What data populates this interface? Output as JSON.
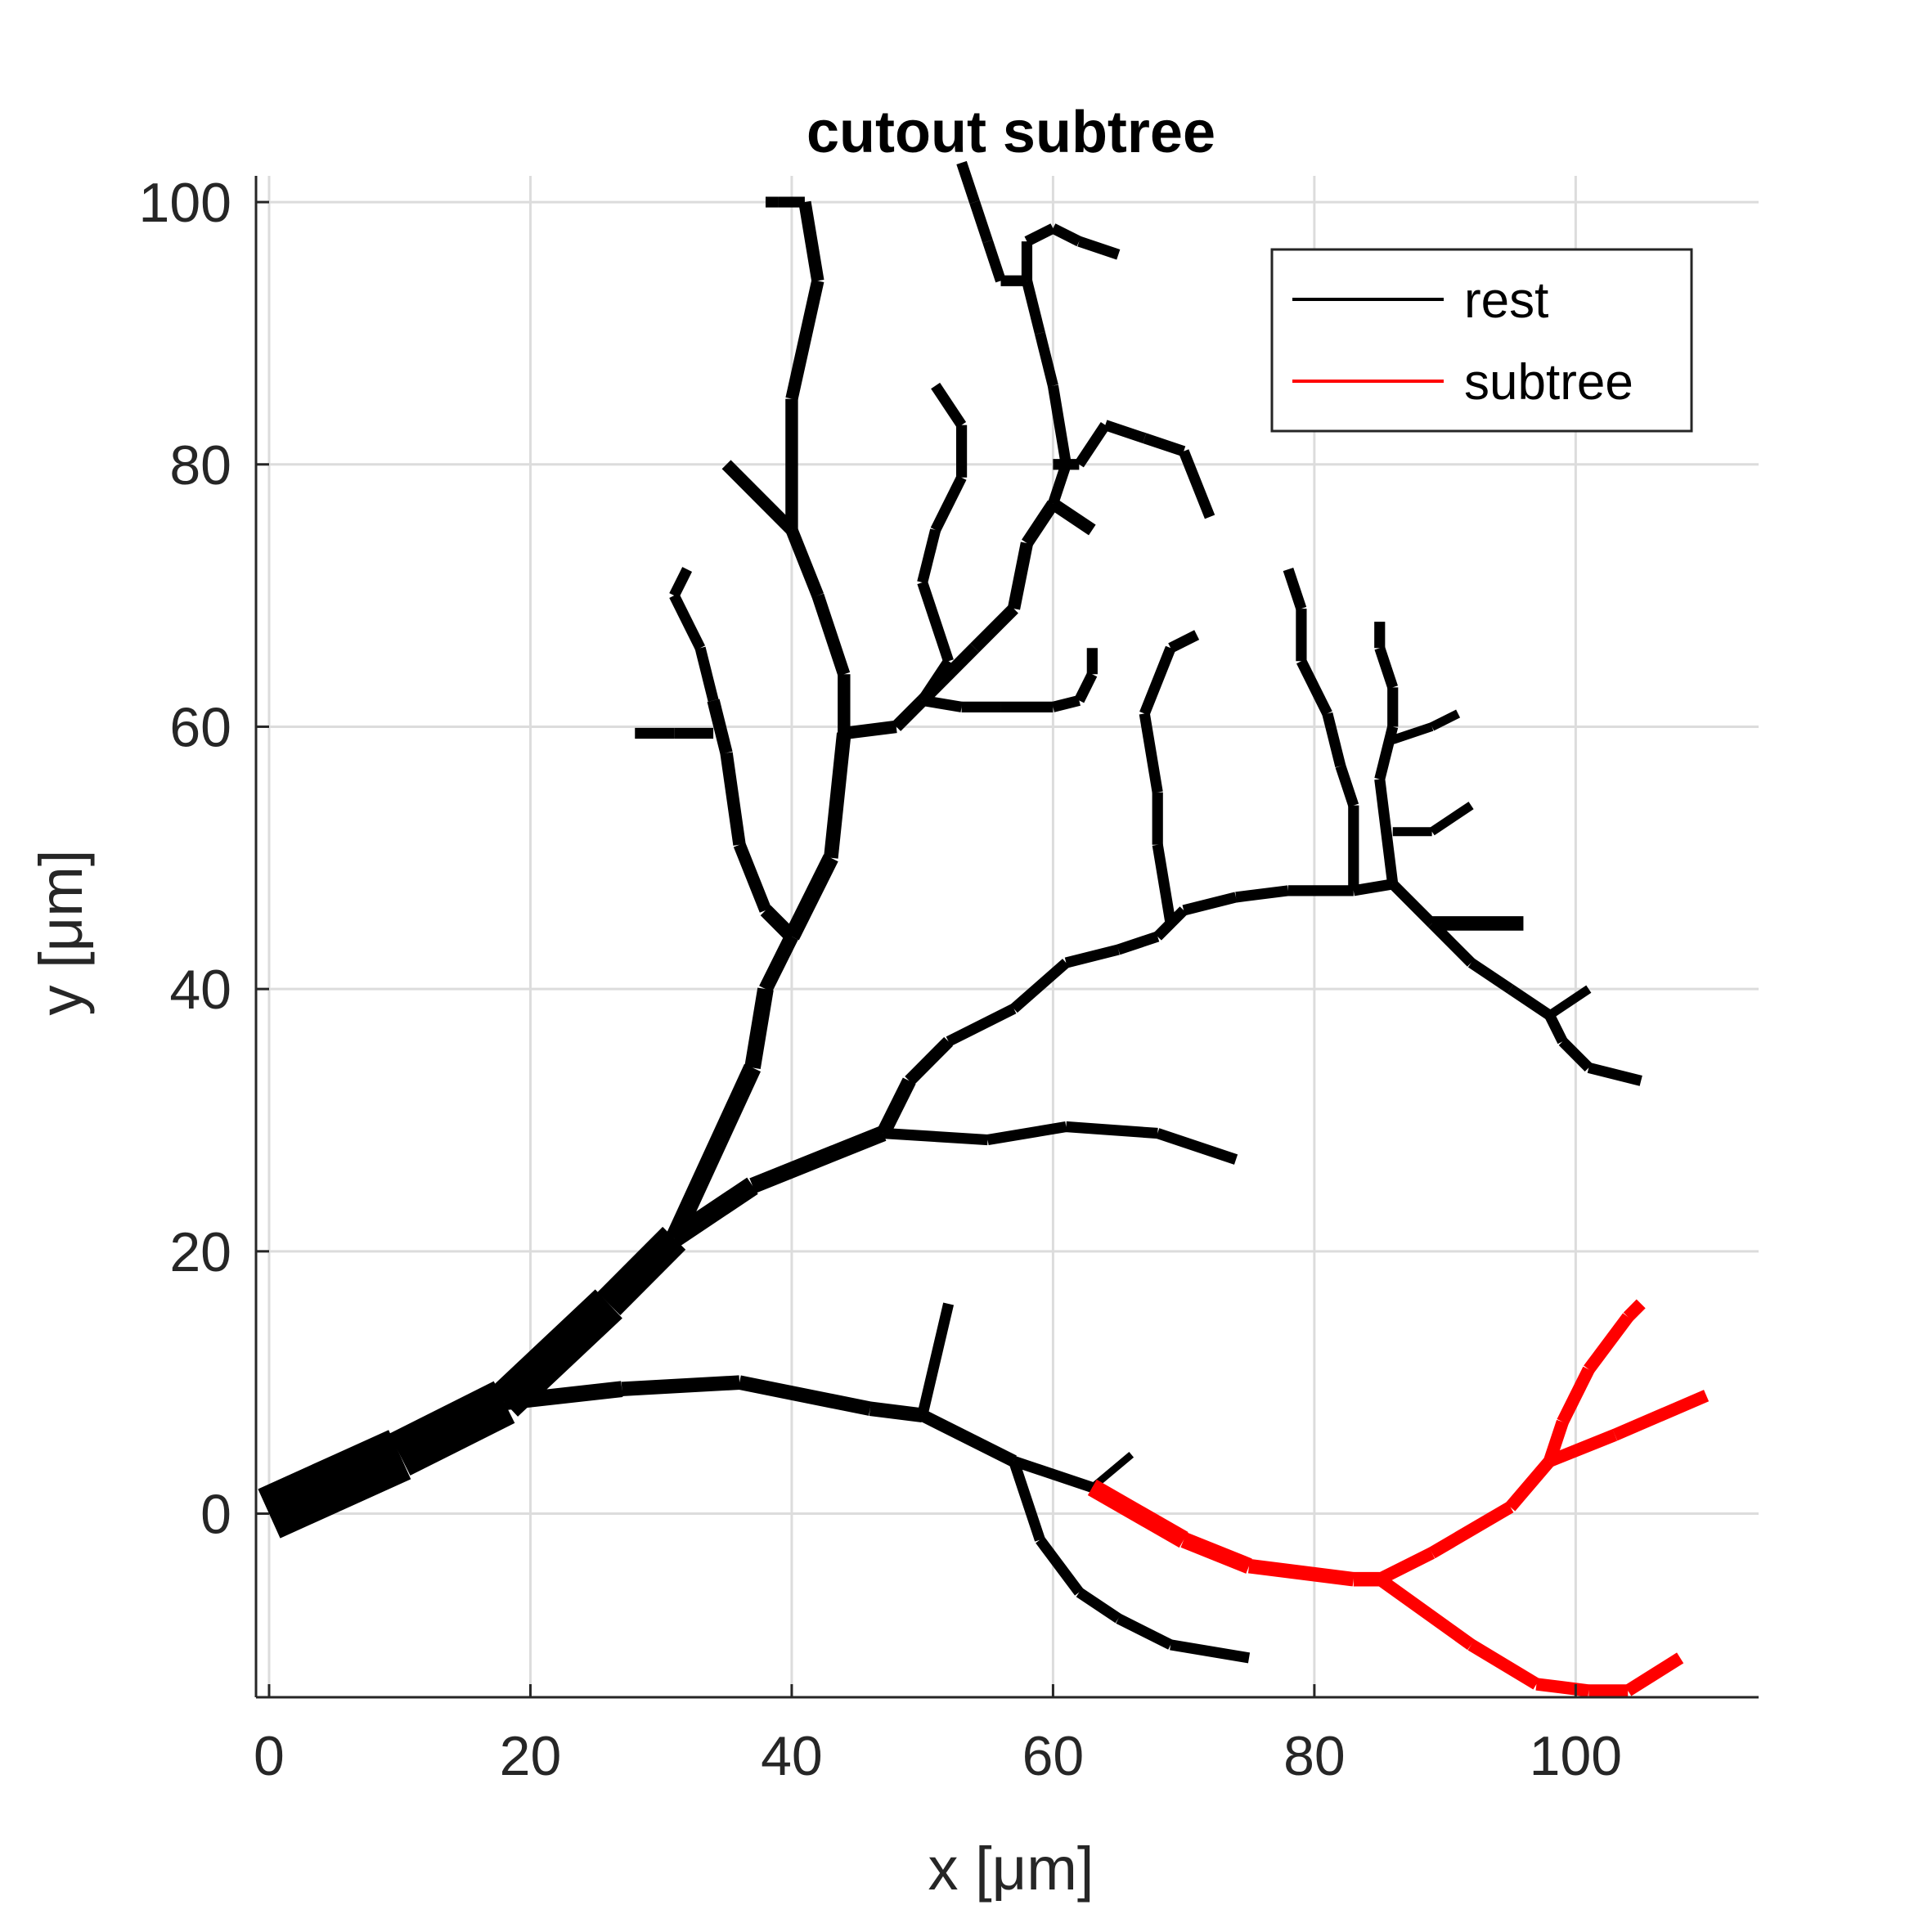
{
  "chart_data": {
    "type": "line",
    "title": "cutout subtree",
    "xlabel": "x [μm]",
    "ylabel": "y [μm]",
    "xlim": [
      -1,
      114
    ],
    "ylim": [
      -14,
      102
    ],
    "xticks": [
      0,
      20,
      40,
      60,
      80,
      100
    ],
    "yticks": [
      0,
      20,
      40,
      60,
      80,
      100
    ],
    "xtick_labels": [
      "0",
      "20",
      "40",
      "60",
      "80",
      "100"
    ],
    "ytick_labels": [
      "0",
      "20",
      "40",
      "60",
      "80",
      "100"
    ],
    "grid": true,
    "legend_position": "top-right",
    "legend": [
      {
        "label": "rest",
        "color": "#000000"
      },
      {
        "label": "subtree",
        "color": "#ff0000"
      }
    ],
    "series": [
      {
        "name": "rest",
        "color": "#000000",
        "branches": [
          {
            "w": [
              30,
              26,
              22,
              18,
              14
            ],
            "points": [
              [
                0,
                0
              ],
              [
                10,
                4.5
              ],
              [
                18,
                8.5
              ],
              [
                26,
                16
              ],
              [
                31,
                21
              ]
            ]
          },
          {
            "w": [
              10,
              9,
              8
            ],
            "points": [
              [
                31,
                21
              ],
              [
                37,
                34
              ],
              [
                38,
                40
              ],
              [
                40,
                44
              ]
            ]
          },
          {
            "w": [
              9,
              8,
              7,
              7
            ],
            "points": [
              [
                40,
                44
              ],
              [
                43,
                50
              ],
              [
                44,
                59.5
              ],
              [
                48,
                60
              ],
              [
                50,
                62
              ]
            ]
          },
          {
            "w": [
              8,
              7,
              7,
              7
            ],
            "points": [
              [
                40,
                44
              ],
              [
                38,
                46
              ],
              [
                36,
                51
              ],
              [
                35,
                58
              ],
              [
                34,
                62
              ]
            ]
          },
          {
            "w": [
              6,
              6
            ],
            "points": [
              [
                34,
                62
              ],
              [
                33,
                66
              ],
              [
                31,
                70
              ],
              [
                32,
                72
              ]
            ]
          },
          {
            "w": [
              6,
              6
            ],
            "points": [
              [
                34,
                59.5
              ],
              [
                31,
                59.5
              ],
              [
                28,
                59.5
              ]
            ]
          },
          {
            "w": [
              7,
              7,
              7,
              7,
              7
            ],
            "points": [
              [
                44,
                59.5
              ],
              [
                44,
                64
              ],
              [
                42,
                70
              ],
              [
                40,
                75
              ],
              [
                40,
                85
              ],
              [
                42,
                94
              ],
              [
                41,
                100
              ]
            ]
          },
          {
            "w": [
              7
            ],
            "points": [
              [
                40,
                75
              ],
              [
                35,
                80
              ]
            ]
          },
          {
            "w": [
              6,
              6
            ],
            "points": [
              [
                41,
                100
              ],
              [
                39,
                100
              ],
              [
                38,
                100
              ]
            ]
          },
          {
            "w": [
              7,
              7,
              7,
              7
            ],
            "points": [
              [
                50,
                62
              ],
              [
                54,
                66
              ],
              [
                57,
                69
              ],
              [
                58,
                74
              ],
              [
                60,
                77
              ],
              [
                63,
                75
              ]
            ]
          },
          {
            "w": [
              6,
              6,
              6,
              6
            ],
            "points": [
              [
                60,
                77
              ],
              [
                61,
                80
              ],
              [
                60,
                86
              ],
              [
                59,
                90
              ],
              [
                58,
                94
              ],
              [
                56,
                94
              ]
            ]
          },
          {
            "w": [
              6,
              6,
              6
            ],
            "points": [
              [
                56,
                94
              ],
              [
                55,
                97
              ],
              [
                54,
                100
              ],
              [
                53,
                103
              ]
            ]
          },
          {
            "w": [
              6,
              6,
              6
            ],
            "points": [
              [
                58,
                94
              ],
              [
                58,
                97
              ],
              [
                60,
                98
              ],
              [
                62,
                97
              ],
              [
                65,
                96
              ]
            ]
          },
          {
            "w": [
              6,
              6,
              6,
              6
            ],
            "points": [
              [
                60,
                80
              ],
              [
                62,
                80
              ],
              [
                64,
                83
              ],
              [
                67,
                82
              ],
              [
                70,
                81
              ],
              [
                72,
                76
              ]
            ]
          },
          {
            "w": [
              6,
              6,
              6
            ],
            "points": [
              [
                50,
                62
              ],
              [
                52,
                65
              ],
              [
                50,
                71
              ],
              [
                51,
                75
              ],
              [
                53,
                79
              ],
              [
                53,
                83
              ],
              [
                51,
                86
              ]
            ]
          },
          {
            "w": [
              6,
              6,
              6
            ],
            "points": [
              [
                50,
                62
              ],
              [
                53,
                61.5
              ],
              [
                56,
                61.5
              ],
              [
                60,
                61.5
              ],
              [
                62,
                62
              ],
              [
                63,
                64
              ],
              [
                63,
                66
              ]
            ]
          },
          {
            "w": [
              11,
              9
            ],
            "points": [
              [
                31,
                21
              ],
              [
                37,
                25
              ],
              [
                47,
                29
              ]
            ]
          },
          {
            "w": [
              6,
              6,
              6,
              6
            ],
            "points": [
              [
                47,
                29
              ],
              [
                55,
                28.5
              ],
              [
                61,
                29.5
              ],
              [
                68,
                29
              ],
              [
                74,
                27
              ]
            ]
          },
          {
            "w": [
              8,
              7,
              6,
              6,
              6
            ],
            "points": [
              [
                47,
                29
              ],
              [
                49,
                33
              ],
              [
                52,
                36
              ],
              [
                57,
                38.5
              ],
              [
                61,
                42
              ],
              [
                65,
                43
              ],
              [
                68,
                44
              ],
              [
                70,
                46
              ],
              [
                74,
                47
              ],
              [
                78,
                47.5
              ],
              [
                83,
                47.5
              ],
              [
                86,
                48
              ]
            ]
          },
          {
            "w": [
              6,
              6,
              6,
              6
            ],
            "points": [
              [
                69,
                45
              ],
              [
                68,
                51
              ],
              [
                68,
                55
              ],
              [
                67,
                61
              ],
              [
                69,
                66
              ],
              [
                71,
                67
              ]
            ]
          },
          {
            "w": [
              6,
              6,
              6
            ],
            "points": [
              [
                83,
                47.5
              ],
              [
                83,
                54
              ],
              [
                82,
                57
              ],
              [
                81,
                61
              ],
              [
                79,
                65
              ],
              [
                79,
                69
              ],
              [
                78,
                72
              ]
            ]
          },
          {
            "w": [
              6,
              6,
              6
            ],
            "points": [
              [
                86,
                48
              ],
              [
                85,
                56
              ],
              [
                86,
                60
              ],
              [
                86,
                63
              ],
              [
                85,
                66
              ],
              [
                85,
                68
              ]
            ]
          },
          {
            "w": [
              5,
              5
            ],
            "points": [
              [
                86,
                52
              ],
              [
                89,
                52
              ],
              [
                92,
                54
              ]
            ]
          },
          {
            "w": [
              5,
              5
            ],
            "points": [
              [
                86,
                59
              ],
              [
                89,
                60
              ],
              [
                91,
                61
              ]
            ]
          },
          {
            "w": [
              6,
              6,
              6,
              6
            ],
            "points": [
              [
                86,
                48
              ],
              [
                89,
                45
              ],
              [
                92,
                42
              ],
              [
                95,
                40
              ],
              [
                98,
                38
              ],
              [
                99,
                36
              ],
              [
                101,
                34
              ],
              [
                105,
                33
              ]
            ]
          },
          {
            "w": [
              8
            ],
            "points": [
              [
                89,
                45
              ],
              [
                96,
                45
              ]
            ]
          },
          {
            "w": [
              5
            ],
            "points": [
              [
                98,
                38
              ],
              [
                101,
                40
              ]
            ]
          },
          {
            "w": [
              9,
              8
            ],
            "points": [
              [
                18,
                8.5
              ],
              [
                27,
                9.5
              ],
              [
                36,
                10
              ],
              [
                46,
                8
              ],
              [
                50,
                7.5
              ]
            ]
          },
          {
            "w": [
              6
            ],
            "points": [
              [
                50,
                7.5
              ],
              [
                52,
                16
              ]
            ]
          },
          {
            "w": [
              7,
              6
            ],
            "points": [
              [
                50,
                7.5
              ],
              [
                57,
                4
              ],
              [
                63,
                2
              ]
            ]
          },
          {
            "w": [
              6,
              6,
              6
            ],
            "points": [
              [
                57,
                4
              ],
              [
                59,
                -2
              ],
              [
                62,
                -6
              ],
              [
                65,
                -8
              ],
              [
                69,
                -10
              ],
              [
                75,
                -11
              ]
            ]
          },
          {
            "w": [
              4
            ],
            "points": [
              [
                63,
                2
              ],
              [
                66,
                4.5
              ]
            ]
          }
        ]
      },
      {
        "name": "subtree",
        "color": "#ff0000",
        "branches": [
          {
            "w": [
              10,
              9,
              8
            ],
            "points": [
              [
                63,
                2
              ],
              [
                70,
                -2
              ],
              [
                75,
                -4
              ],
              [
                83,
                -5
              ],
              [
                85,
                -5
              ]
            ]
          },
          {
            "w": [
              7,
              7,
              7
            ],
            "points": [
              [
                85,
                -5
              ],
              [
                89,
                -3
              ],
              [
                95,
                0.5
              ],
              [
                98,
                4
              ],
              [
                103,
                6
              ],
              [
                110,
                9
              ]
            ]
          },
          {
            "w": [
              7,
              7
            ],
            "points": [
              [
                98,
                4
              ],
              [
                99,
                7
              ],
              [
                101,
                11
              ],
              [
                104,
                15
              ],
              [
                105,
                16
              ]
            ]
          },
          {
            "w": [
              7,
              7,
              7
            ],
            "points": [
              [
                85,
                -5
              ],
              [
                92,
                -10
              ],
              [
                97,
                -13
              ],
              [
                101,
                -13.5
              ],
              [
                104,
                -13.5
              ],
              [
                108,
                -11
              ]
            ]
          }
        ]
      }
    ]
  }
}
